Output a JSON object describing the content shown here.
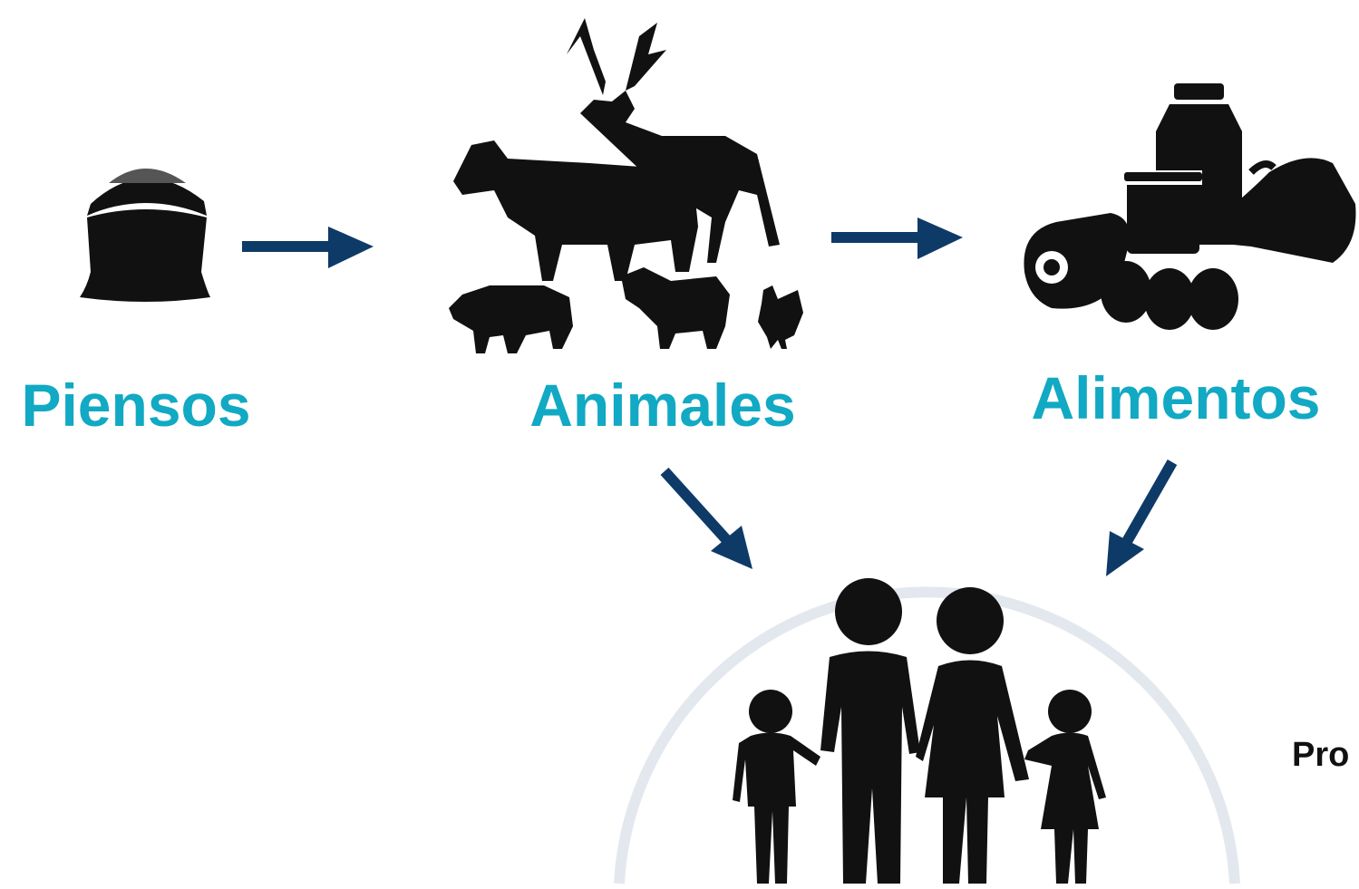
{
  "nodes": [
    {
      "label": "Piensos"
    },
    {
      "label": "Animales"
    },
    {
      "label": "Alimentos"
    }
  ],
  "side_text": "Pro"
}
